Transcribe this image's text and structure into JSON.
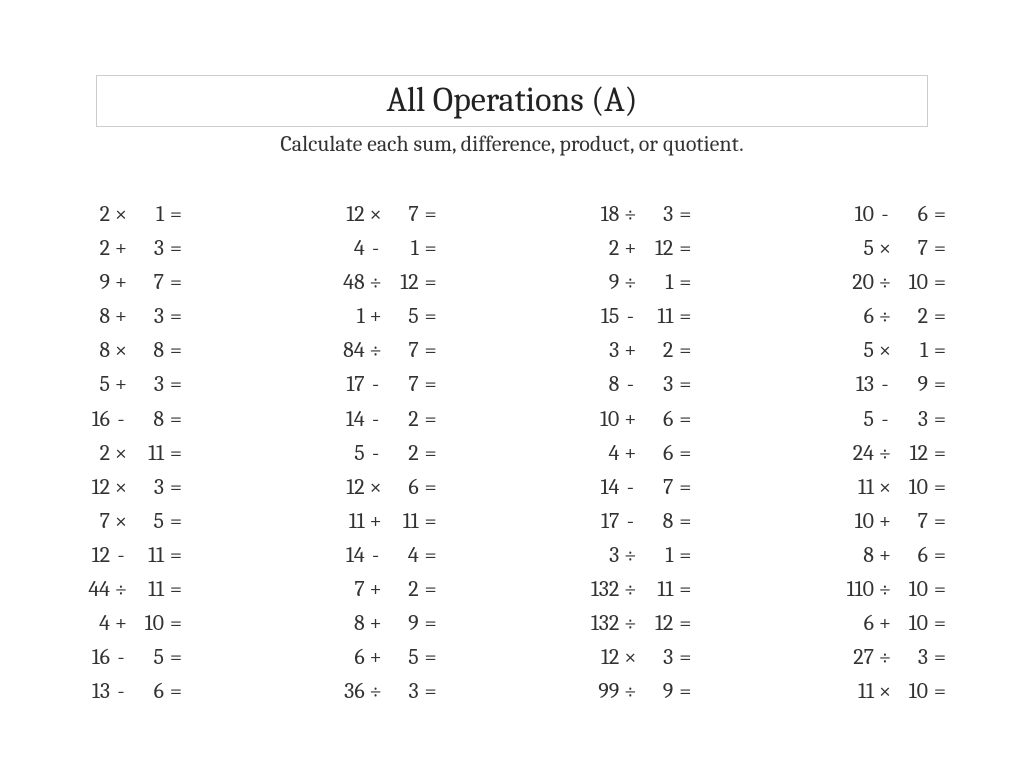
{
  "title": "All Operations (A)",
  "subtitle": "Calculate each sum, difference, product, or quotient.",
  "text_color": "#333333",
  "background_color": "#ffffff",
  "title_border_color": "#cccccc",
  "font_family": "Cambria, Georgia, 'Times New Roman', serif",
  "title_fontsize": 34,
  "subtitle_fontsize": 22,
  "problem_fontsize": 22,
  "columns": [
    [
      {
        "a": "2",
        "op": "×",
        "b": "1"
      },
      {
        "a": "2",
        "op": "+",
        "b": "3"
      },
      {
        "a": "9",
        "op": "+",
        "b": "7"
      },
      {
        "a": "8",
        "op": "+",
        "b": "3"
      },
      {
        "a": "8",
        "op": "×",
        "b": "8"
      },
      {
        "a": "5",
        "op": "+",
        "b": "3"
      },
      {
        "a": "16",
        "op": "-",
        "b": "8"
      },
      {
        "a": "2",
        "op": "×",
        "b": "11"
      },
      {
        "a": "12",
        "op": "×",
        "b": "3"
      },
      {
        "a": "7",
        "op": "×",
        "b": "5"
      },
      {
        "a": "12",
        "op": "-",
        "b": "11"
      },
      {
        "a": "44",
        "op": "÷",
        "b": "11"
      },
      {
        "a": "4",
        "op": "+",
        "b": "10"
      },
      {
        "a": "16",
        "op": "-",
        "b": "5"
      },
      {
        "a": "13",
        "op": "-",
        "b": "6"
      }
    ],
    [
      {
        "a": "12",
        "op": "×",
        "b": "7"
      },
      {
        "a": "4",
        "op": "-",
        "b": "1"
      },
      {
        "a": "48",
        "op": "÷",
        "b": "12"
      },
      {
        "a": "1",
        "op": "+",
        "b": "5"
      },
      {
        "a": "84",
        "op": "÷",
        "b": "7"
      },
      {
        "a": "17",
        "op": "-",
        "b": "7"
      },
      {
        "a": "14",
        "op": "-",
        "b": "2"
      },
      {
        "a": "5",
        "op": "-",
        "b": "2"
      },
      {
        "a": "12",
        "op": "×",
        "b": "6"
      },
      {
        "a": "11",
        "op": "+",
        "b": "11"
      },
      {
        "a": "14",
        "op": "-",
        "b": "4"
      },
      {
        "a": "7",
        "op": "+",
        "b": "2"
      },
      {
        "a": "8",
        "op": "+",
        "b": "9"
      },
      {
        "a": "6",
        "op": "+",
        "b": "5"
      },
      {
        "a": "36",
        "op": "÷",
        "b": "3"
      }
    ],
    [
      {
        "a": "18",
        "op": "÷",
        "b": "3"
      },
      {
        "a": "2",
        "op": "+",
        "b": "12"
      },
      {
        "a": "9",
        "op": "÷",
        "b": "1"
      },
      {
        "a": "15",
        "op": "-",
        "b": "11"
      },
      {
        "a": "3",
        "op": "+",
        "b": "2"
      },
      {
        "a": "8",
        "op": "-",
        "b": "3"
      },
      {
        "a": "10",
        "op": "+",
        "b": "6"
      },
      {
        "a": "4",
        "op": "+",
        "b": "6"
      },
      {
        "a": "14",
        "op": "-",
        "b": "7"
      },
      {
        "a": "17",
        "op": "-",
        "b": "8"
      },
      {
        "a": "3",
        "op": "÷",
        "b": "1"
      },
      {
        "a": "132",
        "op": "÷",
        "b": "11"
      },
      {
        "a": "132",
        "op": "÷",
        "b": "12"
      },
      {
        "a": "12",
        "op": "×",
        "b": "3"
      },
      {
        "a": "99",
        "op": "÷",
        "b": "9"
      }
    ],
    [
      {
        "a": "10",
        "op": "-",
        "b": "6"
      },
      {
        "a": "5",
        "op": "×",
        "b": "7"
      },
      {
        "a": "20",
        "op": "÷",
        "b": "10"
      },
      {
        "a": "6",
        "op": "÷",
        "b": "2"
      },
      {
        "a": "5",
        "op": "×",
        "b": "1"
      },
      {
        "a": "13",
        "op": "-",
        "b": "9"
      },
      {
        "a": "5",
        "op": "-",
        "b": "3"
      },
      {
        "a": "24",
        "op": "÷",
        "b": "12"
      },
      {
        "a": "11",
        "op": "×",
        "b": "10"
      },
      {
        "a": "10",
        "op": "+",
        "b": "7"
      },
      {
        "a": "8",
        "op": "+",
        "b": "6"
      },
      {
        "a": "110",
        "op": "÷",
        "b": "10"
      },
      {
        "a": "6",
        "op": "+",
        "b": "10"
      },
      {
        "a": "27",
        "op": "÷",
        "b": "3"
      },
      {
        "a": "11",
        "op": "×",
        "b": "10"
      }
    ]
  ],
  "equals": "="
}
